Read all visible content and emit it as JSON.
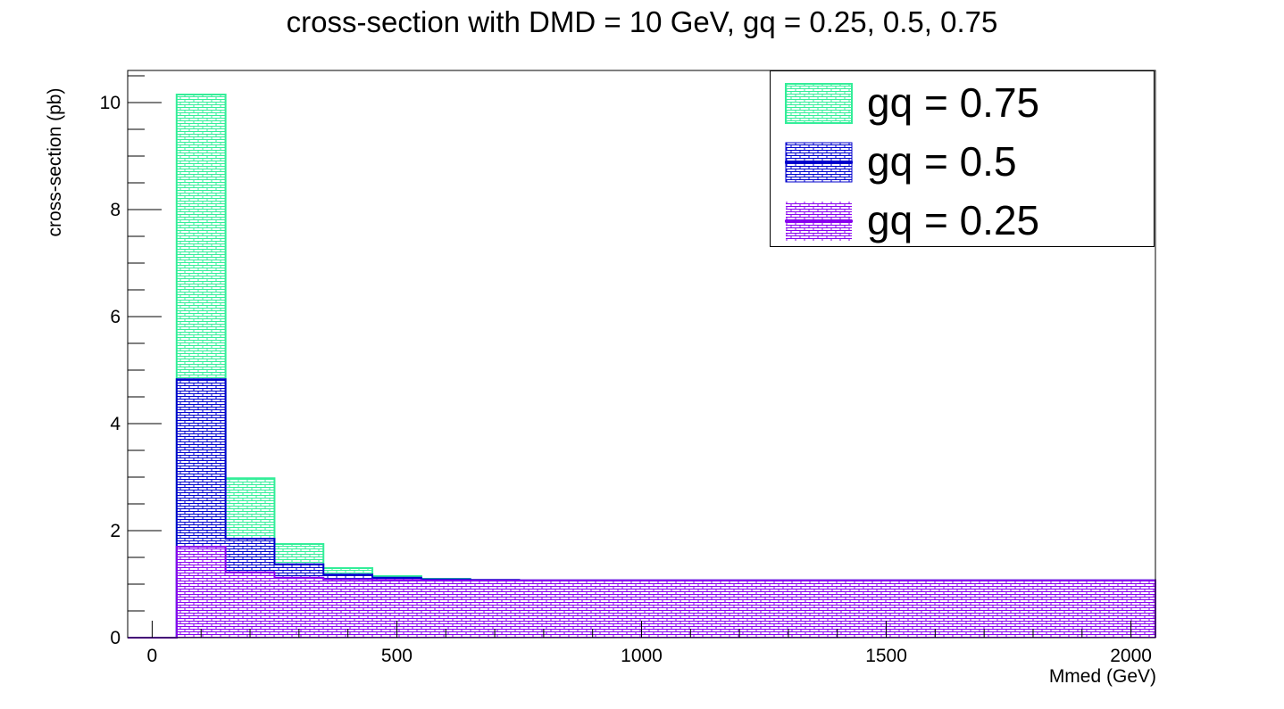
{
  "chart_data": {
    "type": "bar",
    "title": "cross-section with DMD = 10 GeV, gq = 0.25, 0.5, 0.75",
    "xlabel": "Mmed (GeV)",
    "ylabel": "cross-section (pb)",
    "xlim": [
      -50,
      2050
    ],
    "ylim": [
      0,
      10.6
    ],
    "x_ticks": [
      0,
      500,
      1000,
      1500,
      2000
    ],
    "y_ticks": [
      0,
      2,
      4,
      6,
      8,
      10
    ],
    "bin_edges": [
      50,
      150,
      250,
      350,
      450,
      550,
      650,
      750,
      850,
      2050
    ],
    "legend_position": "top-right",
    "grid": false,
    "series": [
      {
        "name": "gq = 0.75",
        "color": "#33ee99",
        "values": [
          10.15,
          2.98,
          1.75,
          1.3,
          1.15,
          1.1,
          1.08,
          1.07,
          1.07
        ]
      },
      {
        "name": "gq = 0.5",
        "color": "#0000cc",
        "values": [
          4.83,
          1.85,
          1.37,
          1.18,
          1.12,
          1.09,
          1.08,
          1.07,
          1.07
        ]
      },
      {
        "name": "gq = 0.25",
        "color": "#8800ee",
        "values": [
          1.7,
          1.22,
          1.12,
          1.09,
          1.08,
          1.07,
          1.07,
          1.07,
          1.07
        ]
      }
    ]
  }
}
